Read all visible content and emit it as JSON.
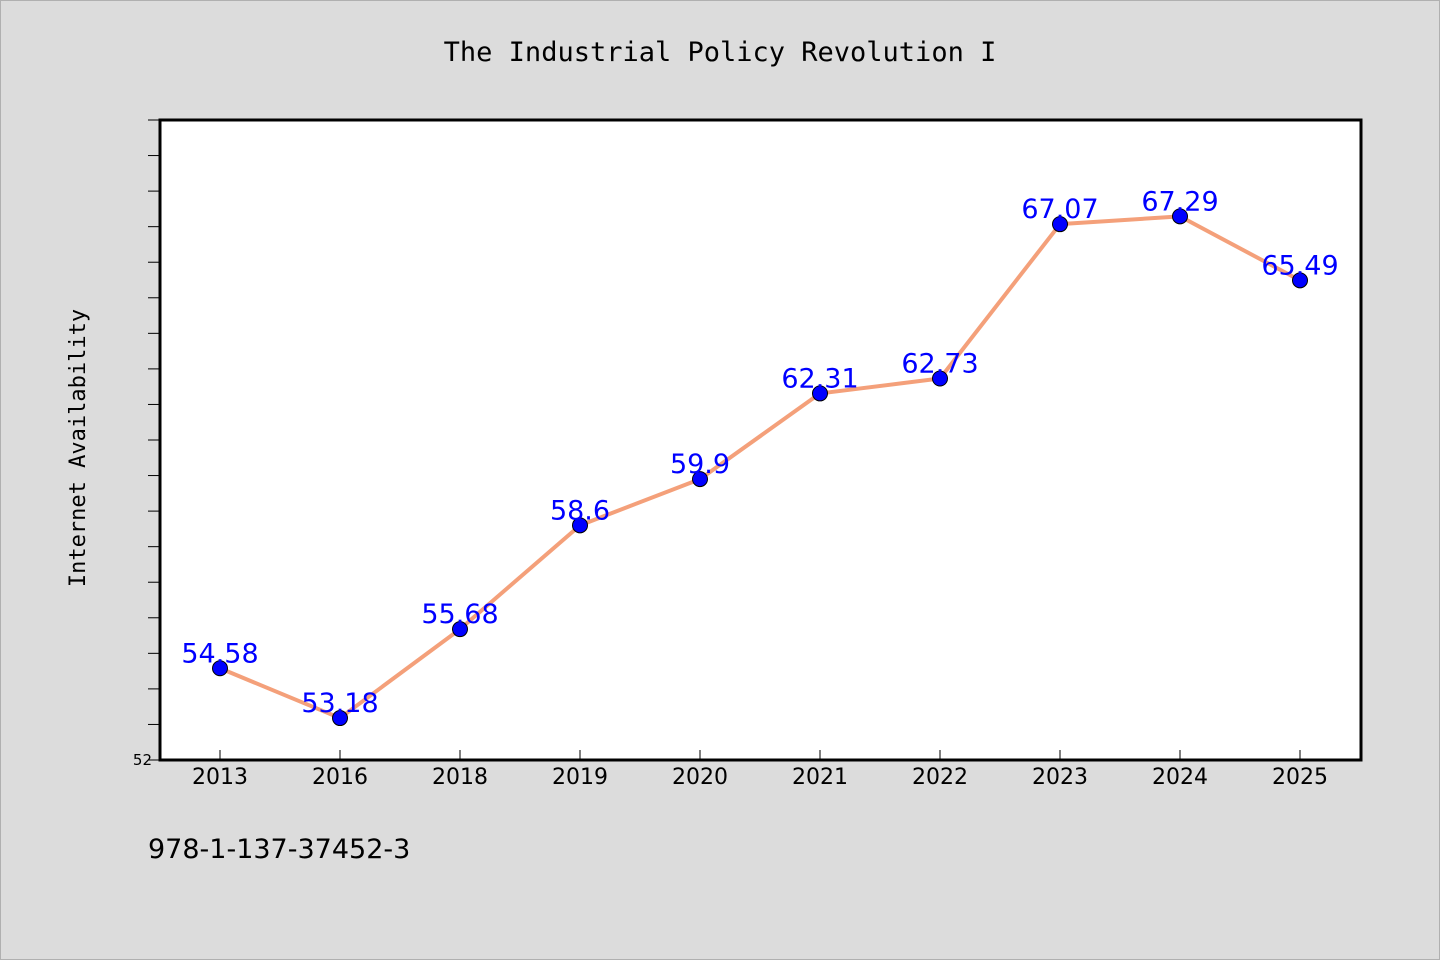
{
  "chart_data": {
    "type": "line",
    "title": "The Industrial Policy Revolution I",
    "xlabel": "",
    "ylabel": "Internet Availability",
    "categories": [
      "2013",
      "2016",
      "2018",
      "2019",
      "2020",
      "2021",
      "2022",
      "2023",
      "2024",
      "2025"
    ],
    "series": [
      {
        "values": [
          54.58,
          53.18,
          55.68,
          58.6,
          59.9,
          62.31,
          62.73,
          67.07,
          67.29,
          65.49
        ],
        "labels": [
          "54.58",
          "53.18",
          "55.68",
          "58.6",
          "59.9",
          "62.31",
          "62.73",
          "67.07",
          "67.29",
          "65.49"
        ]
      }
    ],
    "ylim": [
      52,
      70
    ],
    "ytick_labels": [
      "52"
    ],
    "grid": false,
    "colors": {
      "line": "#f4a07a",
      "marker": "#0000ff",
      "data_label": "#0000ff",
      "plot_background": "#ffffff",
      "figure_background": "#dcdcdc"
    }
  },
  "footer": {
    "isbn": "978-1-137-37452-3"
  }
}
